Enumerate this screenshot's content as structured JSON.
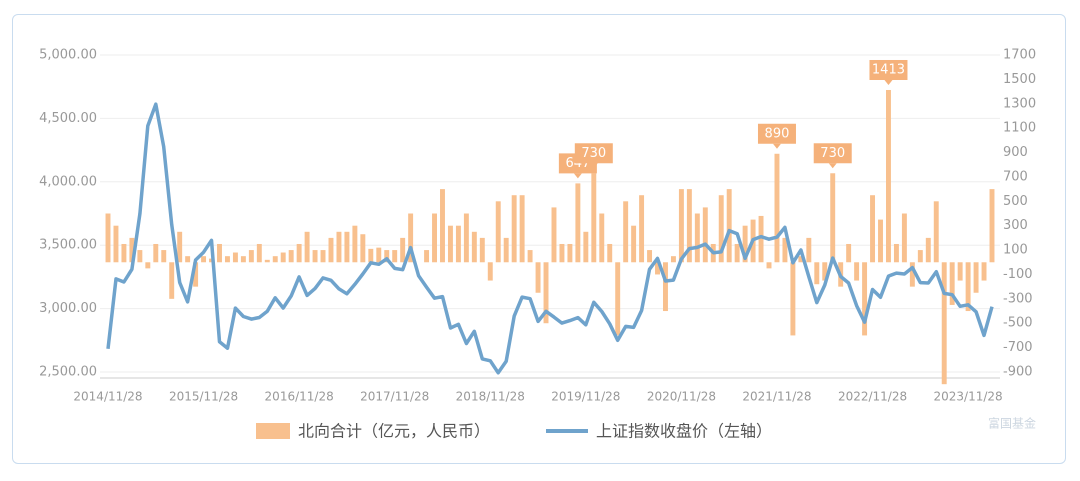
{
  "chart_data": {
    "type": "bar-line",
    "categories": [
      "2014/11/28",
      null,
      null,
      null,
      null,
      null,
      null,
      null,
      null,
      null,
      null,
      null,
      "2015/11/28",
      null,
      null,
      null,
      null,
      null,
      null,
      null,
      null,
      null,
      null,
      null,
      "2016/11/28",
      null,
      null,
      null,
      null,
      null,
      null,
      null,
      null,
      null,
      null,
      null,
      "2017/11/28",
      null,
      null,
      null,
      null,
      null,
      null,
      null,
      null,
      null,
      null,
      null,
      "2018/11/28",
      null,
      null,
      null,
      null,
      null,
      null,
      null,
      null,
      null,
      null,
      null,
      "2019/11/28",
      null,
      null,
      null,
      null,
      null,
      null,
      null,
      null,
      null,
      null,
      null,
      "2020/11/28",
      null,
      null,
      null,
      null,
      null,
      null,
      null,
      null,
      null,
      null,
      null,
      "2021/11/28",
      null,
      null,
      null,
      null,
      null,
      null,
      null,
      null,
      null,
      null,
      null,
      "2022/11/28",
      null,
      null,
      null,
      null,
      null,
      null,
      null,
      null,
      null,
      null,
      null,
      "2023/11/28",
      null,
      null,
      null
    ],
    "series": [
      {
        "name": "北向合计（亿元，人民币）",
        "color": "#f8c08e",
        "axis": "y2",
        "values": [
          400,
          300,
          150,
          200,
          100,
          -50,
          150,
          100,
          -300,
          250,
          50,
          -200,
          50,
          30,
          150,
          50,
          80,
          50,
          100,
          150,
          20,
          50,
          80,
          100,
          150,
          250,
          100,
          100,
          200,
          250,
          250,
          300,
          230,
          110,
          120,
          100,
          100,
          200,
          400,
          0,
          100,
          400,
          600,
          300,
          300,
          400,
          250,
          200,
          -150,
          500,
          200,
          550,
          550,
          100,
          -250,
          -500,
          450,
          150,
          150,
          647,
          250,
          730,
          400,
          150,
          -600,
          500,
          300,
          550,
          100,
          -100,
          -400,
          50,
          600,
          600,
          400,
          450,
          150,
          550,
          600,
          150,
          300,
          350,
          380,
          -50,
          890,
          200,
          -600,
          50,
          200,
          -180,
          -150,
          730,
          -200,
          150,
          -150,
          -600,
          550,
          350,
          1413,
          150,
          400,
          -200,
          100,
          200,
          500,
          -1000,
          -350,
          -150,
          -400,
          -250,
          -150,
          600
        ]
      },
      {
        "name": "上证指数收盘价（左轴）",
        "color": "#6fa3cc",
        "values": [
          2683,
          3234,
          3210,
          3310,
          3748,
          4441,
          4612,
          4277,
          3664,
          3206,
          3053,
          3383,
          3445,
          3539,
          2738,
          2688,
          3004,
          2938,
          2917,
          2930,
          2979,
          3085,
          3005,
          3100,
          3250,
          3104,
          3159,
          3242,
          3223,
          3155,
          3117,
          3192,
          3273,
          3361,
          3349,
          3393,
          3317,
          3307,
          3481,
          3259,
          3169,
          3082,
          3095,
          2847,
          2876,
          2725,
          2821,
          2603,
          2588,
          2494,
          2585,
          2941,
          3091,
          3078,
          2899,
          2979,
          2933,
          2886,
          2905,
          2929,
          2872,
          3050,
          2977,
          2880,
          2750,
          2860,
          2852,
          2985,
          3310,
          3396,
          3218,
          3225,
          3392,
          3473,
          3483,
          3509,
          3441,
          3447,
          3615,
          3591,
          3397,
          3544,
          3568,
          3547,
          3564,
          3640,
          3361,
          3462,
          3252,
          3047,
          3186,
          3399,
          3253,
          3202,
          3024,
          2893,
          3151,
          3089,
          3256,
          3280,
          3273,
          3323,
          3205,
          3202,
          3291,
          3120,
          3110,
          3018,
          3030,
          2975,
          2789,
          3015
        ]
      }
    ],
    "ylim": [
      2500,
      5000
    ],
    "yticks": [
      {
        "value": 2500,
        "label": "2,500.00"
      },
      {
        "value": 3000,
        "label": "3,000.00"
      },
      {
        "value": 3500,
        "label": "3,500.00"
      },
      {
        "value": 4000,
        "label": "4,000.00"
      },
      {
        "value": 4500,
        "label": "4,500.00"
      },
      {
        "value": 5000,
        "label": "5,000.00"
      }
    ],
    "y2lim": [
      -900,
      1700
    ],
    "y2ticks": [
      -900,
      -700,
      -500,
      -300,
      -100,
      100,
      300,
      500,
      700,
      900,
      1100,
      1300,
      1500,
      1700
    ],
    "grid": true,
    "watermark": "富国基金"
  }
}
